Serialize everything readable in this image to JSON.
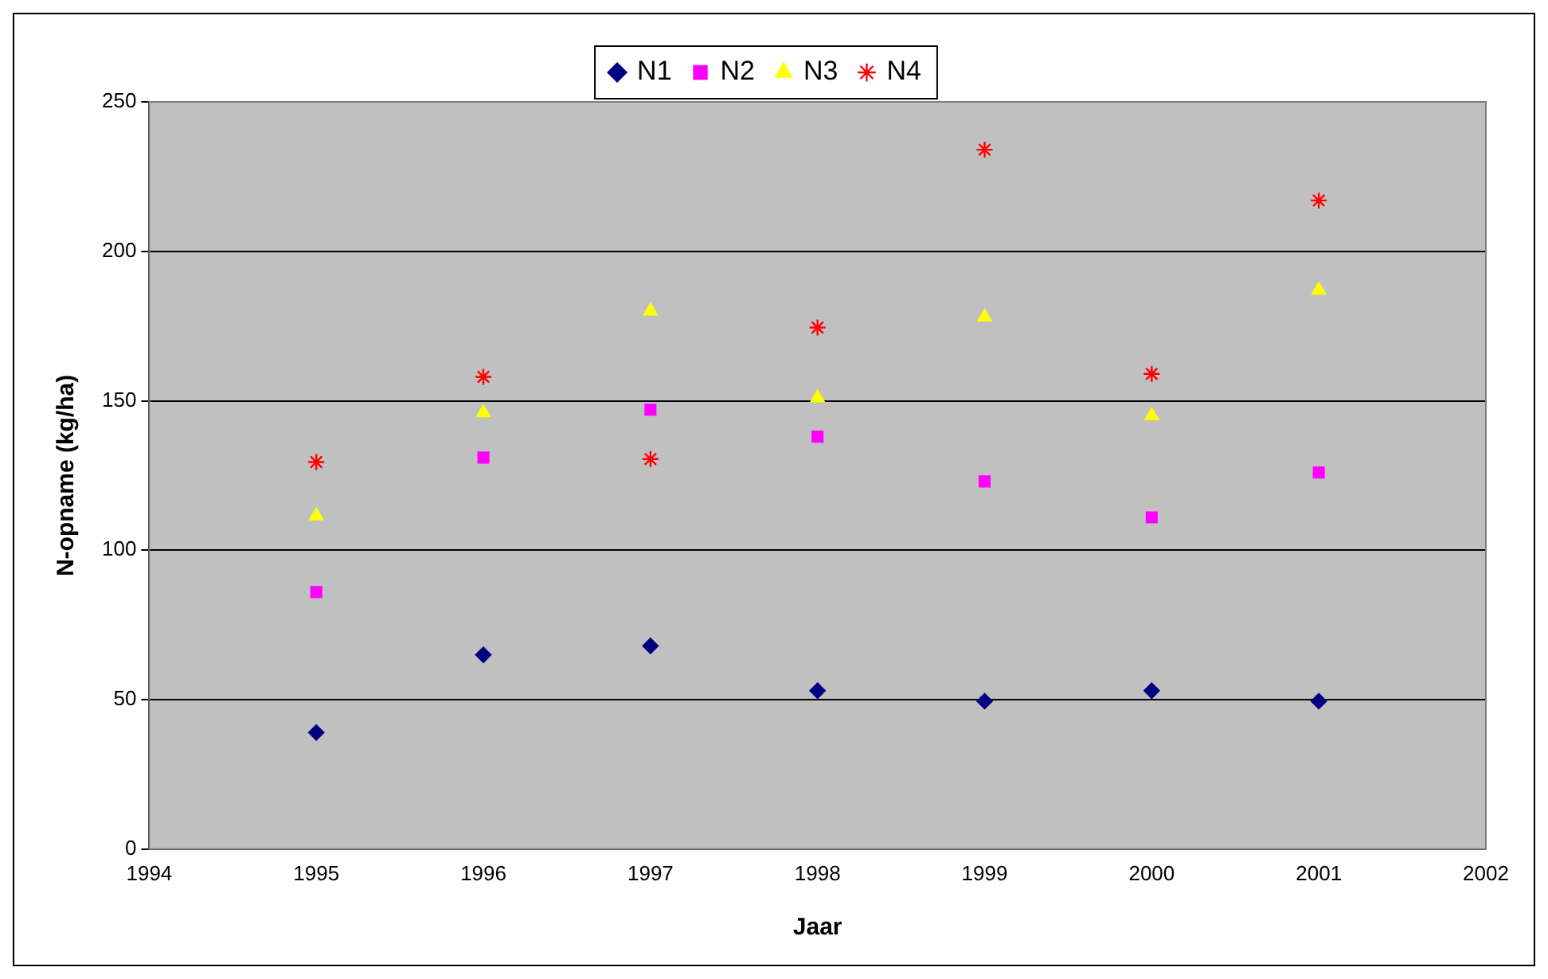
{
  "chart_data": {
    "type": "scatter",
    "xlabel": "Jaar",
    "ylabel": "N-opname (kg/ha)",
    "x": [
      1995,
      1996,
      1997,
      1998,
      1999,
      2000,
      2001
    ],
    "series": [
      {
        "name": "N1",
        "color": "#000080",
        "marker": "diamond",
        "values": [
          39,
          65,
          68,
          53,
          49.5,
          53,
          49.5
        ]
      },
      {
        "name": "N2",
        "color": "#ff00ff",
        "marker": "square",
        "values": [
          86,
          131,
          147,
          138,
          123,
          111,
          126
        ]
      },
      {
        "name": "N3",
        "color": "#ffff00",
        "marker": "triangle",
        "values": [
          111.5,
          146,
          180,
          151,
          178,
          145,
          187
        ]
      },
      {
        "name": "N4",
        "color": "#ff0000",
        "marker": "cross",
        "values": [
          129.5,
          158,
          130.5,
          174.5,
          234,
          159,
          217
        ]
      }
    ],
    "xlim": [
      1994,
      2002
    ],
    "xticks": [
      1994,
      1995,
      1996,
      1997,
      1998,
      1999,
      2000,
      2001,
      2002
    ],
    "ylim": [
      0,
      250
    ],
    "yticks": [
      0,
      50,
      100,
      150,
      200,
      250
    ],
    "grid": "y",
    "legend": "top"
  }
}
